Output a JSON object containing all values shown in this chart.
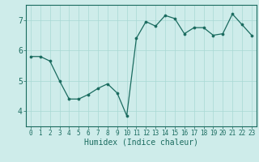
{
  "x": [
    0,
    1,
    2,
    3,
    4,
    5,
    6,
    7,
    8,
    9,
    10,
    11,
    12,
    13,
    14,
    15,
    16,
    17,
    18,
    19,
    20,
    21,
    22,
    23
  ],
  "y": [
    5.8,
    5.8,
    5.65,
    5.0,
    4.4,
    4.4,
    4.55,
    4.75,
    4.9,
    4.6,
    3.85,
    6.4,
    6.95,
    6.8,
    7.15,
    7.05,
    6.55,
    6.75,
    6.75,
    6.5,
    6.55,
    7.2,
    6.85,
    6.5
  ],
  "xlabel": "Humidex (Indice chaleur)",
  "ylim": [
    3.5,
    7.5
  ],
  "xlim": [
    -0.5,
    23.5
  ],
  "yticks": [
    4,
    5,
    6,
    7
  ],
  "xticks": [
    0,
    1,
    2,
    3,
    4,
    5,
    6,
    7,
    8,
    9,
    10,
    11,
    12,
    13,
    14,
    15,
    16,
    17,
    18,
    19,
    20,
    21,
    22,
    23
  ],
  "xtick_labels": [
    "0",
    "1",
    "2",
    "3",
    "4",
    "5",
    "6",
    "7",
    "8",
    "9",
    "10",
    "11",
    "12",
    "13",
    "14",
    "15",
    "16",
    "17",
    "18",
    "19",
    "20",
    "21",
    "22",
    "23"
  ],
  "ytick_labels": [
    "4",
    "5",
    "6",
    "7"
  ],
  "line_color": "#1a6b5f",
  "marker_color": "#1a6b5f",
  "bg_color": "#ceecea",
  "grid_color": "#a8d8d4",
  "spine_color": "#1a6b5f",
  "tick_label_color": "#1a6b5f",
  "xlabel_color": "#1a6b5f",
  "xlabel_fontsize": 7,
  "ytick_fontsize": 7,
  "xtick_fontsize": 5.5
}
